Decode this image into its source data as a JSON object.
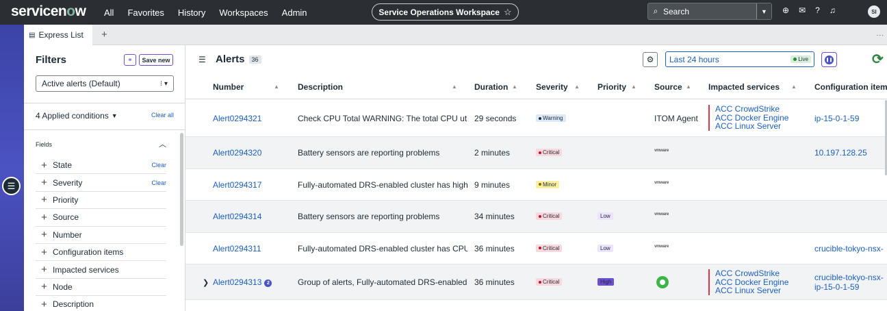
{
  "topnav": {
    "logo_pre": "servicen",
    "logo_o": "o",
    "logo_post": "w",
    "links": [
      "All",
      "Favorites",
      "History",
      "Workspaces",
      "Admin"
    ],
    "workspace": "Service Operations Workspace",
    "search_placeholder": "Search",
    "avatar_initials": "SI"
  },
  "tabs": {
    "active": "Express List",
    "add": "+",
    "more": "..."
  },
  "filters": {
    "title": "Filters",
    "save_label": "Save new",
    "selected_view": "Active alerts (Default)",
    "applied_conditions": "4 Applied conditions",
    "clear_all": "Clear all",
    "fields_label": "Fields",
    "items": [
      {
        "label": "State",
        "clear": "Clear"
      },
      {
        "label": "Severity",
        "clear": "Clear"
      },
      {
        "label": "Priority",
        "clear": ""
      },
      {
        "label": "Source",
        "clear": ""
      },
      {
        "label": "Number",
        "clear": ""
      },
      {
        "label": "Configuration items",
        "clear": ""
      },
      {
        "label": "Impacted services",
        "clear": ""
      },
      {
        "label": "Node",
        "clear": ""
      },
      {
        "label": "Description",
        "clear": ""
      }
    ]
  },
  "alerts": {
    "title": "Alerts",
    "count": "36",
    "time_range": "Last 24 hours",
    "live_label": "Live",
    "columns": [
      "Number",
      "Description",
      "Duration",
      "Severity",
      "Priority",
      "Source",
      "Impacted services",
      "Configuration items"
    ],
    "rows": [
      {
        "number": "Alert0294321",
        "description": "Check CPU Total WARNING: The total CPU uti",
        "duration": "29 seconds",
        "severity": "Warning",
        "priority": "",
        "source": "ITOM Agent",
        "impacted": [
          "ACC CrowdStrike",
          "ACC Docker Engine",
          "ACC Linux Server"
        ],
        "config": "ip-15-0-1-59"
      },
      {
        "number": "Alert0294320",
        "description": "Battery sensors are reporting problems",
        "duration": "2 minutes",
        "severity": "Critical",
        "priority": "",
        "source_logo": "vmware",
        "config": "10.197.128.25"
      },
      {
        "number": "Alert0294317",
        "description": "Fully-automated DRS-enabled cluster has high",
        "duration": "9 minutes",
        "severity": "Minor",
        "priority": "",
        "source_logo": "vmware",
        "config": ""
      },
      {
        "number": "Alert0294314",
        "description": "Battery sensors are reporting problems",
        "duration": "34 minutes",
        "severity": "Critical",
        "priority": "Low",
        "source_logo": "vmware",
        "config": ""
      },
      {
        "number": "Alert0294311",
        "description": "Fully-automated DRS-enabled cluster has CPU",
        "duration": "36 minutes",
        "severity": "Critical",
        "priority": "Low",
        "source_logo": "vmware",
        "config": "crucible-tokyo-nsx-"
      },
      {
        "number": "Alert0294313",
        "group_count": "2",
        "description": "Group of alerts, Fully-automated DRS-enabled",
        "duration": "36 minutes",
        "severity": "Critical",
        "priority": "High",
        "impacted": [
          "ACC CrowdStrike",
          "ACC Docker Engine",
          "ACC Linux Server"
        ],
        "config_lines": [
          "crucible-tokyo-nsx-",
          "ip-15-0-1-59"
        ]
      }
    ]
  }
}
